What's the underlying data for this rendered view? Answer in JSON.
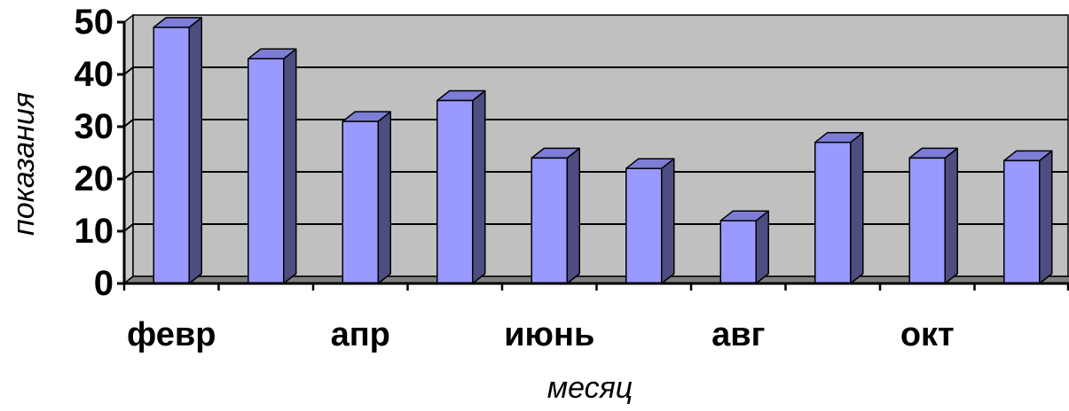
{
  "chart_data": {
    "type": "bar",
    "three_d": true,
    "orientation": "vertical",
    "categories": [
      "февр",
      "",
      "апр",
      "",
      "июнь",
      "",
      "авг",
      "",
      "окт",
      ""
    ],
    "values": [
      49,
      43,
      31,
      35,
      24,
      22,
      12,
      27,
      24,
      23.5
    ],
    "xlabel": "месяц",
    "ylabel": "показания",
    "ylim": [
      0,
      50
    ],
    "yticks": [
      0,
      10,
      20,
      30,
      40,
      50
    ],
    "grid": true
  },
  "colors": {
    "bar_front": "#9999ff",
    "bar_top": "#7d7dd6",
    "bar_side": "#4d4d80",
    "back_wall": "#c0c0c0",
    "side_wall": "#c8c8c8",
    "floor": "#808080",
    "gridline": "#000000",
    "axis": "#000000"
  }
}
